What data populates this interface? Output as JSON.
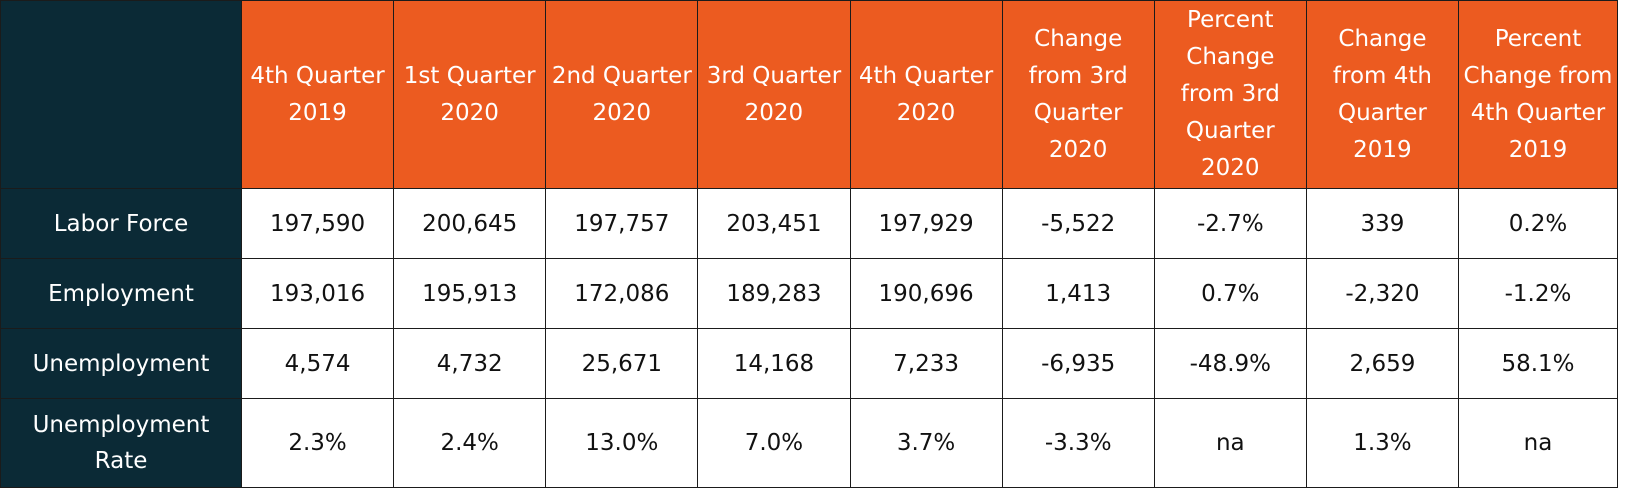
{
  "table": {
    "columns": [
      "4th Quarter 2019",
      "1st Quarter 2020",
      "2nd Quarter 2020",
      "3rd Quarter 2020",
      "4th Quarter 2020",
      "Change from 3rd Quarter 2020",
      "Percent Change from 3rd Quarter 2020",
      "Change from 4th Quarter 2019",
      "Percent Change from 4th Quarter 2019"
    ],
    "rows": [
      {
        "label": "Labor Force",
        "values": [
          "197,590",
          "200,645",
          "197,757",
          "203,451",
          "197,929",
          "-5,522",
          "-2.7%",
          "339",
          "0.2%"
        ]
      },
      {
        "label": "Employment",
        "values": [
          "193,016",
          "195,913",
          "172,086",
          "189,283",
          "190,696",
          "1,413",
          "0.7%",
          "-2,320",
          "-1.2%"
        ]
      },
      {
        "label": "Unemployment",
        "values": [
          "4,574",
          "4,732",
          "25,671",
          "14,168",
          "7,233",
          "-6,935",
          "-48.9%",
          "2,659",
          "58.1%"
        ]
      },
      {
        "label": "Unemployment Rate",
        "values": [
          "2.3%",
          "2.4%",
          "13.0%",
          "7.0%",
          "3.7%",
          "-3.3%",
          "na",
          "1.3%",
          "na"
        ]
      }
    ]
  },
  "colors": {
    "header_bg": "#ec5b20",
    "label_bg": "#0b2a36",
    "text_light": "#ffffff",
    "text_dark": "#111111"
  }
}
